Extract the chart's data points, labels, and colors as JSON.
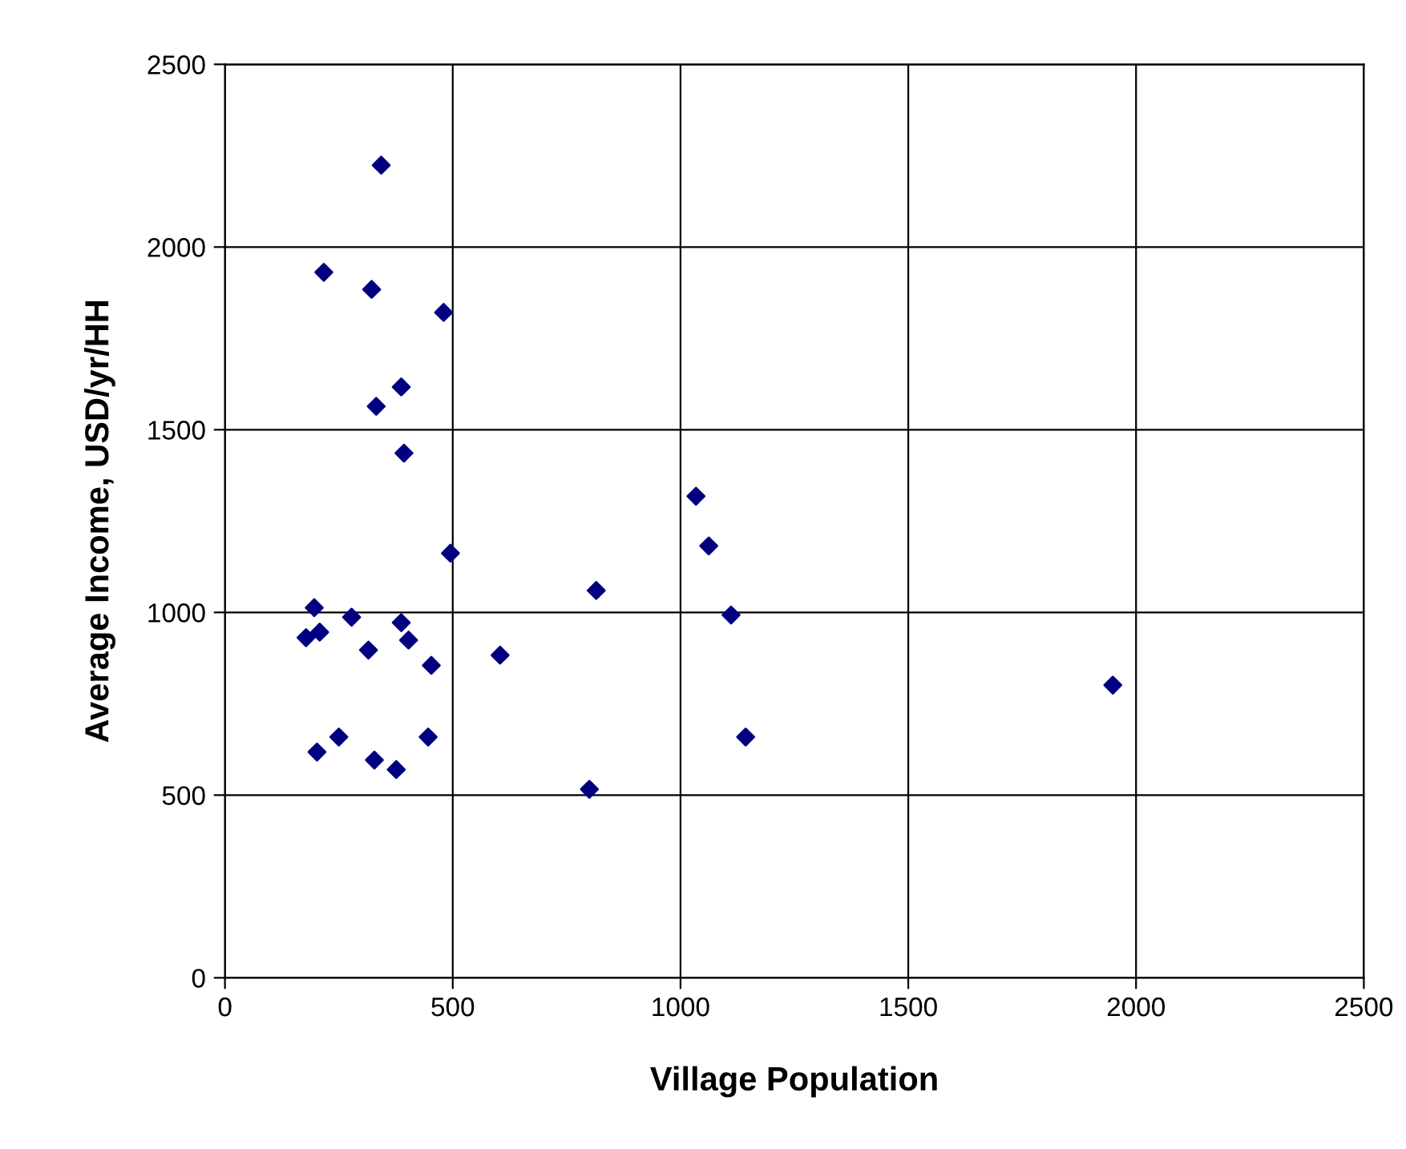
{
  "chart_data": {
    "type": "scatter",
    "xlabel": "Village Population",
    "ylabel": "Average Income, USD/yr/HH",
    "x": [
      343,
      217,
      322,
      480,
      387,
      332,
      393,
      1034,
      1062,
      495,
      815,
      196,
      1111,
      278,
      387,
      208,
      178,
      403,
      315,
      604,
      453,
      250,
      446,
      1143,
      202,
      328,
      376,
      800,
      1949
    ],
    "series": [
      {
        "color": "#000080",
        "values": [
          2224,
          1931,
          1884,
          1821,
          1617,
          1564,
          1436,
          1318,
          1182,
          1162,
          1060,
          1013,
          993,
          987,
          972,
          946,
          931,
          924,
          897,
          883,
          855,
          659,
          659,
          659,
          618,
          596,
          570,
          516,
          801
        ]
      }
    ],
    "xlim": [
      0,
      2500
    ],
    "xticks": [
      0,
      500,
      1000,
      1500,
      2000,
      2500
    ],
    "ylim": [
      0,
      2500
    ],
    "yticks": [
      0,
      500,
      1000,
      1500,
      2000,
      2500
    ],
    "grid": true,
    "marker": "diamond",
    "legend": false
  }
}
